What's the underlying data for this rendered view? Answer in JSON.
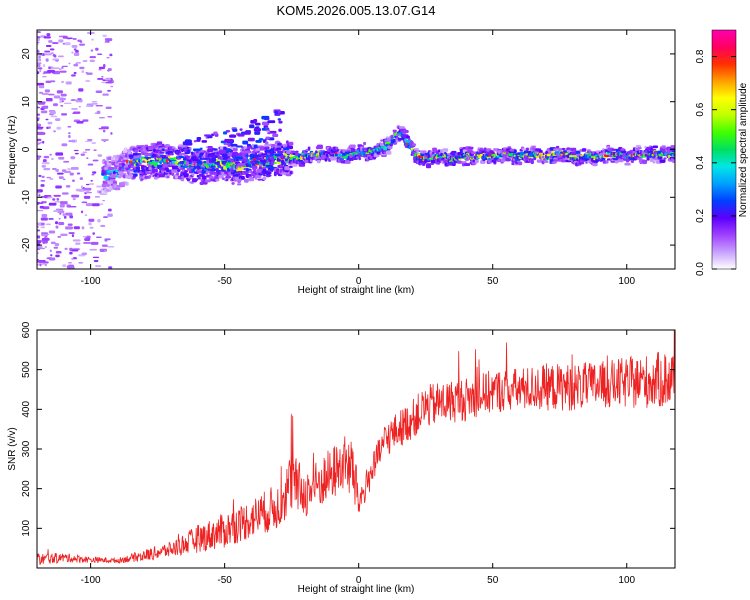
{
  "title": "KOM5.2026.005.13.07.G14",
  "chart_data": [
    {
      "type": "heatmap",
      "xlabel": "Height of straight line (km)",
      "ylabel": "Frequency (Hz)",
      "xlim": [
        -120,
        118
      ],
      "ylim": [
        -25,
        25
      ],
      "xticks": [
        -100,
        -50,
        0,
        50,
        100
      ],
      "xtick_labels": [
        "-100",
        "-50",
        "0",
        "50",
        "100"
      ],
      "yticks": [
        -20,
        -10,
        0,
        10,
        20
      ],
      "ytick_labels": [
        "-20",
        "-10",
        "0",
        "10",
        "20"
      ],
      "ridge": {
        "x": [
          -95,
          -90,
          -85,
          -80,
          -75,
          -70,
          -65,
          -60,
          -55,
          -50,
          -45,
          -40,
          -35,
          -30,
          -25,
          -20,
          -15,
          -10,
          -5,
          0,
          5,
          10,
          13,
          16,
          19,
          22,
          25,
          30,
          35,
          40,
          45,
          50,
          55,
          60,
          65,
          70,
          75,
          80,
          85,
          90,
          95,
          100,
          105,
          110,
          118
        ],
        "y": [
          -5.5,
          -5.0,
          -3.0,
          -2.5,
          -2.5,
          -2.0,
          -3.0,
          -3.5,
          -3.0,
          -3.0,
          -3.5,
          -3.0,
          -2.5,
          -2.0,
          -1.5,
          -1.5,
          -1.0,
          -1.0,
          -1.5,
          -0.5,
          -0.5,
          0.5,
          2.0,
          3.5,
          1.0,
          -1.5,
          -2.0,
          -1.5,
          -2.0,
          -1.5,
          -1.5,
          -1.5,
          -1.0,
          -1.5,
          -1.0,
          -1.5,
          -1.0,
          -1.5,
          -1.5,
          -1.5,
          -1.0,
          -1.5,
          -1.0,
          -1.0,
          -1.0
        ]
      }
    },
    {
      "type": "line",
      "xlabel": "Height of straight line (km)",
      "ylabel": "SNR (v/v)",
      "xlim": [
        -120,
        118
      ],
      "ylim": [
        0,
        600
      ],
      "xticks": [
        -100,
        -50,
        0,
        50,
        100
      ],
      "xtick_labels": [
        "-100",
        "-50",
        "0",
        "50",
        "100"
      ],
      "yticks": [
        100,
        200,
        300,
        400,
        500,
        600
      ],
      "ytick_labels": [
        "100",
        "200",
        "300",
        "400",
        "500",
        "600"
      ],
      "series": [
        {
          "name": "SNR",
          "color": "#ee2222",
          "trend_x": [
            -120,
            -110,
            -100,
            -90,
            -80,
            -70,
            -60,
            -50,
            -40,
            -30,
            -25,
            -20,
            -10,
            -5,
            -2,
            0,
            5,
            10,
            20,
            25,
            30,
            40,
            50,
            60,
            70,
            80,
            90,
            100,
            110,
            118
          ],
          "trend_y": [
            20,
            25,
            20,
            18,
            30,
            45,
            70,
            90,
            120,
            150,
            210,
            180,
            230,
            260,
            230,
            160,
            240,
            320,
            370,
            400,
            410,
            420,
            440,
            445,
            450,
            450,
            455,
            460,
            465,
            470
          ],
          "noise_amplitude": [
            15,
            12,
            8,
            6,
            15,
            20,
            35,
            45,
            50,
            60,
            80,
            60,
            70,
            70,
            90,
            40,
            40,
            45,
            50,
            55,
            55,
            55,
            55,
            55,
            60,
            60,
            60,
            65,
            70,
            80
          ]
        }
      ]
    }
  ],
  "colorbar": {
    "label": "Normalized spectral amplitude",
    "min": 0.0,
    "max": 0.9,
    "ticks": [
      0.0,
      0.2,
      0.4,
      0.6,
      0.8
    ],
    "tick_labels": [
      "0.0",
      "0.2",
      "0.4",
      "0.6",
      "0.8"
    ],
    "stops": [
      "#ffffff",
      "#c8a0ff",
      "#a040ff",
      "#5a00ff",
      "#0040ff",
      "#00a0ff",
      "#00e6e6",
      "#00e060",
      "#40ff00",
      "#c0ff00",
      "#ffff00",
      "#ffa000",
      "#ff3000",
      "#ff0060",
      "#ff00b0"
    ]
  }
}
